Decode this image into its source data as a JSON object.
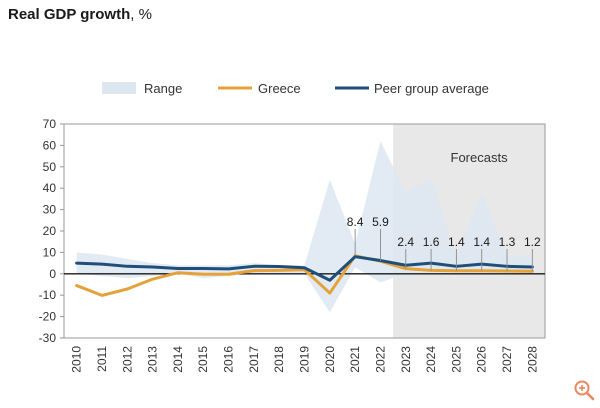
{
  "title_main": "Real GDP growth",
  "title_unit": ", %",
  "zoom_icon": "zoom-in-icon",
  "chart_data": {
    "type": "line",
    "categories": [
      "2010",
      "2011",
      "2012",
      "2013",
      "2014",
      "2015",
      "2016",
      "2017",
      "2018",
      "2019",
      "2020",
      "2021",
      "2022",
      "2023",
      "2024",
      "2025",
      "2026",
      "2027",
      "2028"
    ],
    "ylim": [
      -30,
      70
    ],
    "yticks": [
      70,
      60,
      50,
      40,
      30,
      20,
      10,
      0,
      -10,
      -20,
      -30
    ],
    "grid": false,
    "legend_position": "top",
    "forecast_start": "2023",
    "forecast_label": "Forecasts",
    "range": {
      "name": "Range",
      "color": "#dde7f1",
      "upper": [
        10,
        9,
        7,
        5,
        4,
        4,
        4,
        5,
        4,
        4,
        44,
        14,
        62,
        38,
        45,
        8,
        38,
        8,
        9
      ],
      "lower": [
        0,
        -1,
        -2,
        -1,
        0,
        -2,
        -1,
        0,
        0,
        0,
        -18,
        3,
        -4,
        0,
        1,
        1,
        1,
        1,
        1
      ]
    },
    "series": [
      {
        "name": "Greece",
        "color": "#e5a13a",
        "values": [
          -5.5,
          -10.1,
          -7.1,
          -2.5,
          0.5,
          -0.2,
          -0.2,
          1.5,
          1.6,
          1.9,
          -9.0,
          8.4,
          5.9,
          2.4,
          1.6,
          1.4,
          1.4,
          1.3,
          1.2
        ]
      },
      {
        "name": "Peer group average",
        "color": "#1f4e79",
        "values": [
          5.0,
          4.5,
          3.5,
          3.2,
          2.5,
          2.5,
          2.3,
          3.5,
          3.4,
          2.8,
          -3.0,
          8.0,
          6.2,
          4.0,
          5.0,
          3.5,
          4.5,
          3.5,
          3.2
        ]
      }
    ],
    "annotations": [
      {
        "x": "2021",
        "text": "8.4"
      },
      {
        "x": "2022",
        "text": "5.9"
      },
      {
        "x": "2023",
        "text": "2.4"
      },
      {
        "x": "2024",
        "text": "1.6"
      },
      {
        "x": "2025",
        "text": "1.4"
      },
      {
        "x": "2026",
        "text": "1.4"
      },
      {
        "x": "2027",
        "text": "1.3"
      },
      {
        "x": "2028",
        "text": "1.2"
      }
    ]
  }
}
